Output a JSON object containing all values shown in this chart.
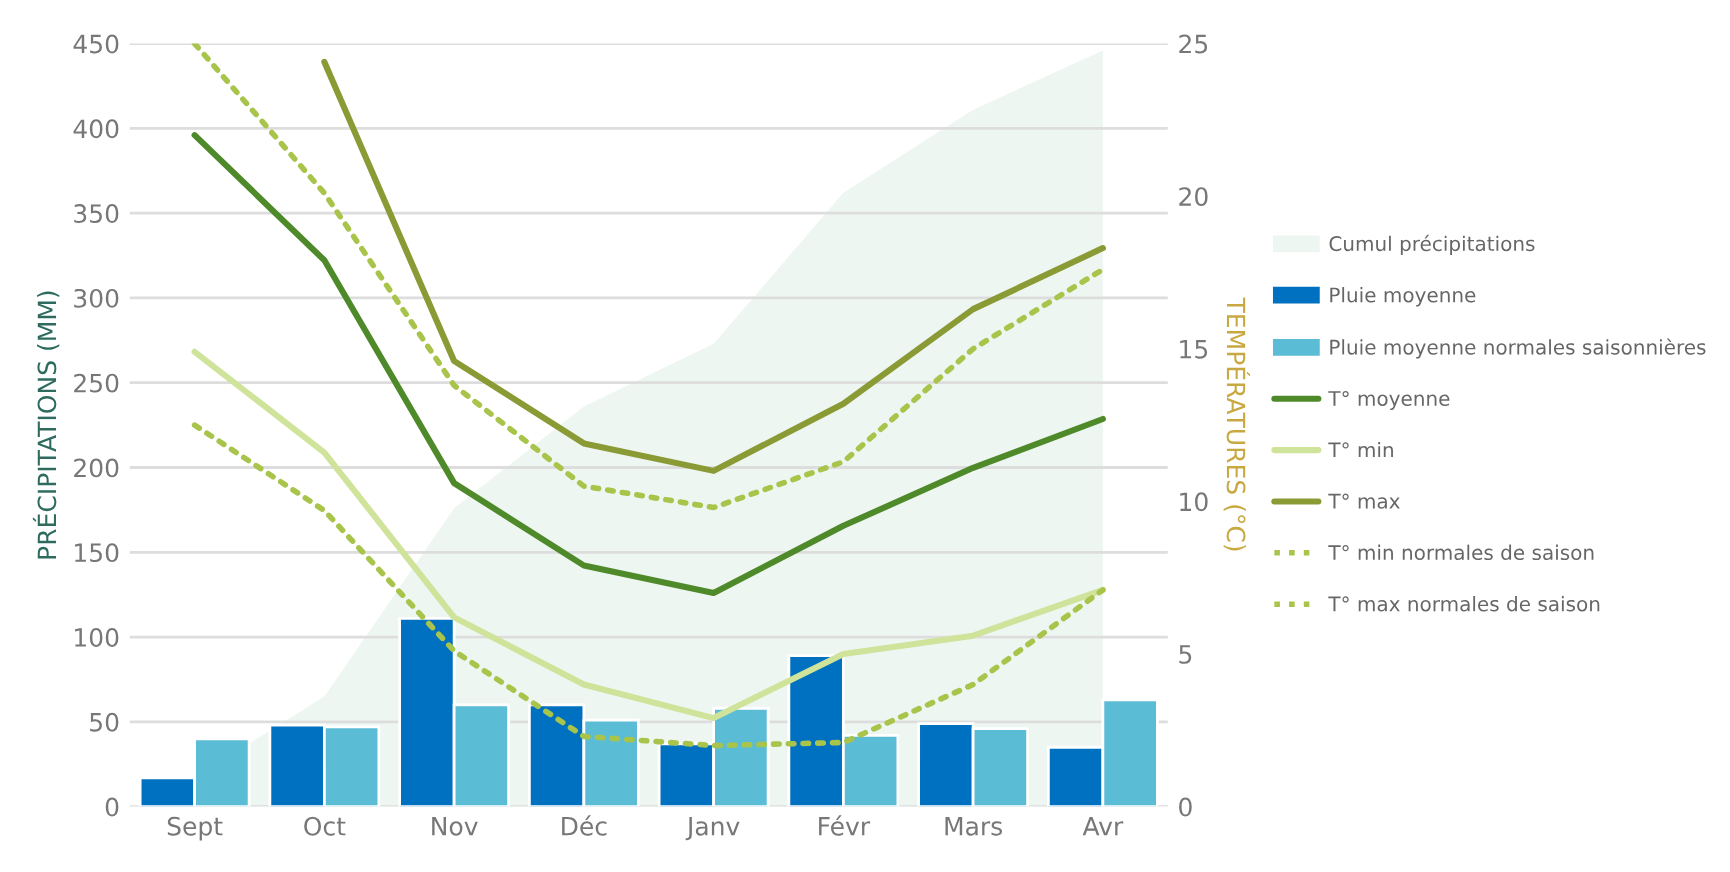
{
  "chart_data": {
    "type": "bar",
    "xlabel": null,
    "ylabel": "PRÉCIPITATIONS (MM)",
    "y2label": "TEMPÉRATURES (°C)",
    "categories": [
      "Sept",
      "Oct",
      "Nov",
      "Déc",
      "Janv",
      "Févr",
      "Mars",
      "Avr"
    ],
    "ylim": [
      0,
      450
    ],
    "yticks": [
      0,
      50,
      100,
      150,
      200,
      250,
      300,
      350,
      400,
      450
    ],
    "y2lim": [
      0,
      25
    ],
    "y2ticks": [
      0,
      5,
      10,
      15,
      20,
      25
    ],
    "grid": "y",
    "legend": "right",
    "series": [
      {
        "name": "Cumul précipitations",
        "type": "area",
        "color": "#eef6f2",
        "values": [
          17,
          65,
          176,
          236,
          273,
          362,
          411,
          446
        ]
      },
      {
        "name": "Pluie moyenne",
        "color": "#0070c0",
        "values": [
          17,
          48,
          111,
          60,
          37,
          89,
          49,
          35
        ]
      },
      {
        "name": "Pluie moyenne normales saisonnières",
        "color": "#5bbcd6",
        "values": [
          40,
          47,
          60,
          51,
          58,
          42,
          46,
          63
        ]
      },
      {
        "name": "T° moyenne",
        "type": "line",
        "axis": "y2",
        "color": "#4f8a2a",
        "line_style": "solid",
        "values": [
          22.0,
          17.9,
          10.6,
          7.9,
          7.0,
          9.2,
          11.1,
          12.7
        ]
      },
      {
        "name": "T° min",
        "type": "line",
        "axis": "y2",
        "color": "#cfe39a",
        "line_style": "solid",
        "values": [
          14.9,
          11.6,
          6.2,
          4.0,
          2.9,
          5.0,
          5.6,
          7.1
        ]
      },
      {
        "name": "T° max",
        "type": "line",
        "axis": "y2",
        "color": "#8a9a35",
        "line_style": "solid",
        "values": [
          null,
          24.4,
          14.6,
          11.9,
          11.0,
          13.2,
          16.3,
          18.3
        ]
      },
      {
        "name": "T° min normales de saison",
        "type": "line",
        "axis": "y2",
        "color": "#a8c44a",
        "line_style": "dotted",
        "values": [
          12.5,
          9.7,
          5.1,
          2.3,
          2.0,
          2.1,
          4.0,
          7.1
        ]
      },
      {
        "name": "T° max normales de saison",
        "type": "line",
        "axis": "y2",
        "color": "#a8c44a",
        "line_style": "dotted",
        "values": [
          25.0,
          20.1,
          13.8,
          10.5,
          9.8,
          11.3,
          15.0,
          17.6
        ]
      }
    ]
  }
}
